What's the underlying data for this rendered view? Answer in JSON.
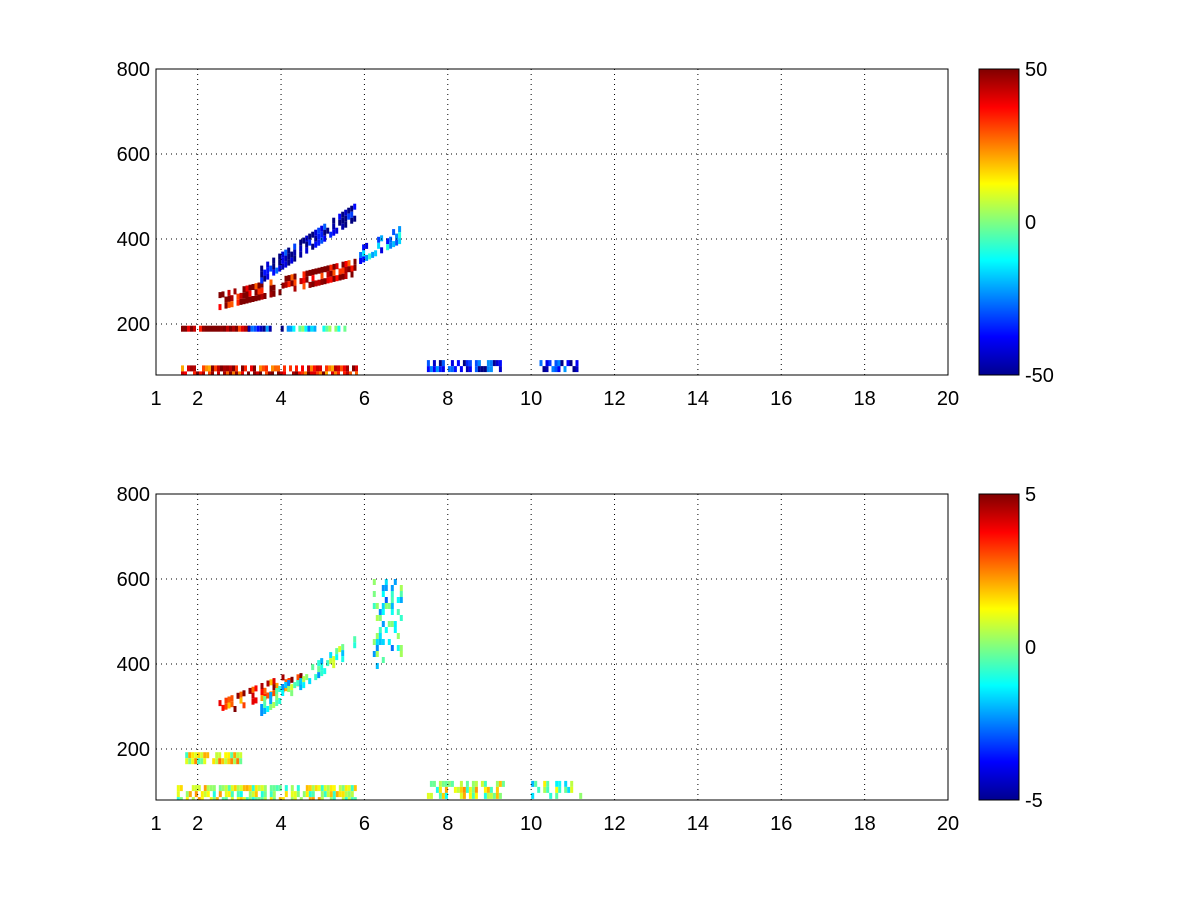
{
  "chart_data": [
    {
      "type": "heatmap",
      "title": "",
      "xlabel": "",
      "ylabel": "",
      "xlim": [
        1,
        20
      ],
      "ylim": [
        80,
        800
      ],
      "x_ticks": [
        1,
        2,
        4,
        6,
        8,
        10,
        12,
        14,
        16,
        18,
        20
      ],
      "x_tick_labels": [
        "1",
        "2",
        "4",
        "6",
        "8",
        "10",
        "12",
        "14",
        "16",
        "18",
        "20"
      ],
      "y_ticks": [
        200,
        400,
        600,
        800
      ],
      "y_tick_labels": [
        "200",
        "400",
        "600",
        "800"
      ],
      "grid": true,
      "colormap": "jet",
      "clim": [
        -50,
        50
      ],
      "colorbar_ticks": [
        50,
        0,
        -50
      ],
      "colorbar_tick_labels": [
        "50",
        "0",
        "-50"
      ],
      "colorbar_placement": "right",
      "background": "#ffffff",
      "features": [
        {
          "kind": "band",
          "x_range": [
            1.6,
            5.8
          ],
          "y": 90,
          "height": 25,
          "value": 38,
          "density": 0.75
        },
        {
          "kind": "band",
          "x_range": [
            1.6,
            3.2
          ],
          "y": 190,
          "height": 12,
          "value": 42,
          "density": 0.8
        },
        {
          "kind": "band",
          "x_range": [
            3.2,
            4.2
          ],
          "y": 190,
          "height": 12,
          "value": -38,
          "density": 0.8
        },
        {
          "kind": "band",
          "x_range": [
            4.2,
            5.5
          ],
          "y": 190,
          "height": 12,
          "value": -10,
          "density": 0.5
        },
        {
          "kind": "band",
          "x_range": [
            7.5,
            9.3
          ],
          "y": 105,
          "height": 20,
          "value": -40,
          "density": 0.65
        },
        {
          "kind": "band",
          "x_range": [
            10.2,
            11.2
          ],
          "y": 105,
          "height": 20,
          "value": -40,
          "density": 0.55
        },
        {
          "kind": "curve",
          "x_range": [
            2.5,
            5.8
          ],
          "y_start": 260,
          "y_end": 340,
          "value": 45,
          "thickness": 30,
          "density": 0.75
        },
        {
          "kind": "curve",
          "x_range": [
            3.5,
            5.8
          ],
          "y_start": 320,
          "y_end": 470,
          "value": -45,
          "thickness": 35,
          "density": 0.75
        },
        {
          "kind": "curve",
          "x_range": [
            5.8,
            7.0
          ],
          "y_start": 360,
          "y_end": 420,
          "value": -25,
          "thickness": 40,
          "density": 0.5
        }
      ]
    },
    {
      "type": "heatmap",
      "title": "",
      "xlabel": "",
      "ylabel": "",
      "xlim": [
        1,
        20
      ],
      "ylim": [
        80,
        800
      ],
      "x_ticks": [
        1,
        2,
        4,
        6,
        8,
        10,
        12,
        14,
        16,
        18,
        20
      ],
      "x_tick_labels": [
        "1",
        "2",
        "4",
        "6",
        "8",
        "10",
        "12",
        "14",
        "16",
        "18",
        "20"
      ],
      "y_ticks": [
        200,
        400,
        600,
        800
      ],
      "y_tick_labels": [
        "200",
        "400",
        "600",
        "800"
      ],
      "grid": true,
      "colormap": "jet",
      "clim": [
        -5,
        5
      ],
      "colorbar_ticks": [
        5,
        0,
        -5
      ],
      "colorbar_tick_labels": [
        "5",
        "0",
        "-5"
      ],
      "colorbar_placement": "right",
      "background": "#ffffff",
      "features": [
        {
          "kind": "band",
          "x_range": [
            1.5,
            5.8
          ],
          "y": 95,
          "height": 40,
          "value": 0.6,
          "density": 0.75
        },
        {
          "kind": "band",
          "x_range": [
            1.7,
            3.0
          ],
          "y": 185,
          "height": 15,
          "value": 1.0,
          "density": 0.85
        },
        {
          "kind": "band",
          "x_range": [
            7.5,
            9.3
          ],
          "y": 110,
          "height": 30,
          "value": 0.6,
          "density": 0.65
        },
        {
          "kind": "band",
          "x_range": [
            10.0,
            11.2
          ],
          "y": 110,
          "height": 30,
          "value": -0.3,
          "density": 0.35
        },
        {
          "kind": "curve",
          "x_range": [
            2.5,
            4.5
          ],
          "y_start": 300,
          "y_end": 380,
          "value": 3.5,
          "thickness": 30,
          "density": 0.5
        },
        {
          "kind": "curve",
          "x_range": [
            3.5,
            5.8
          ],
          "y_start": 300,
          "y_end": 450,
          "value": -0.8,
          "thickness": 40,
          "density": 0.55
        },
        {
          "kind": "band",
          "x_range": [
            6.2,
            6.9
          ],
          "y": 500,
          "height": 200,
          "value": -1.2,
          "density": 0.35
        }
      ]
    }
  ]
}
